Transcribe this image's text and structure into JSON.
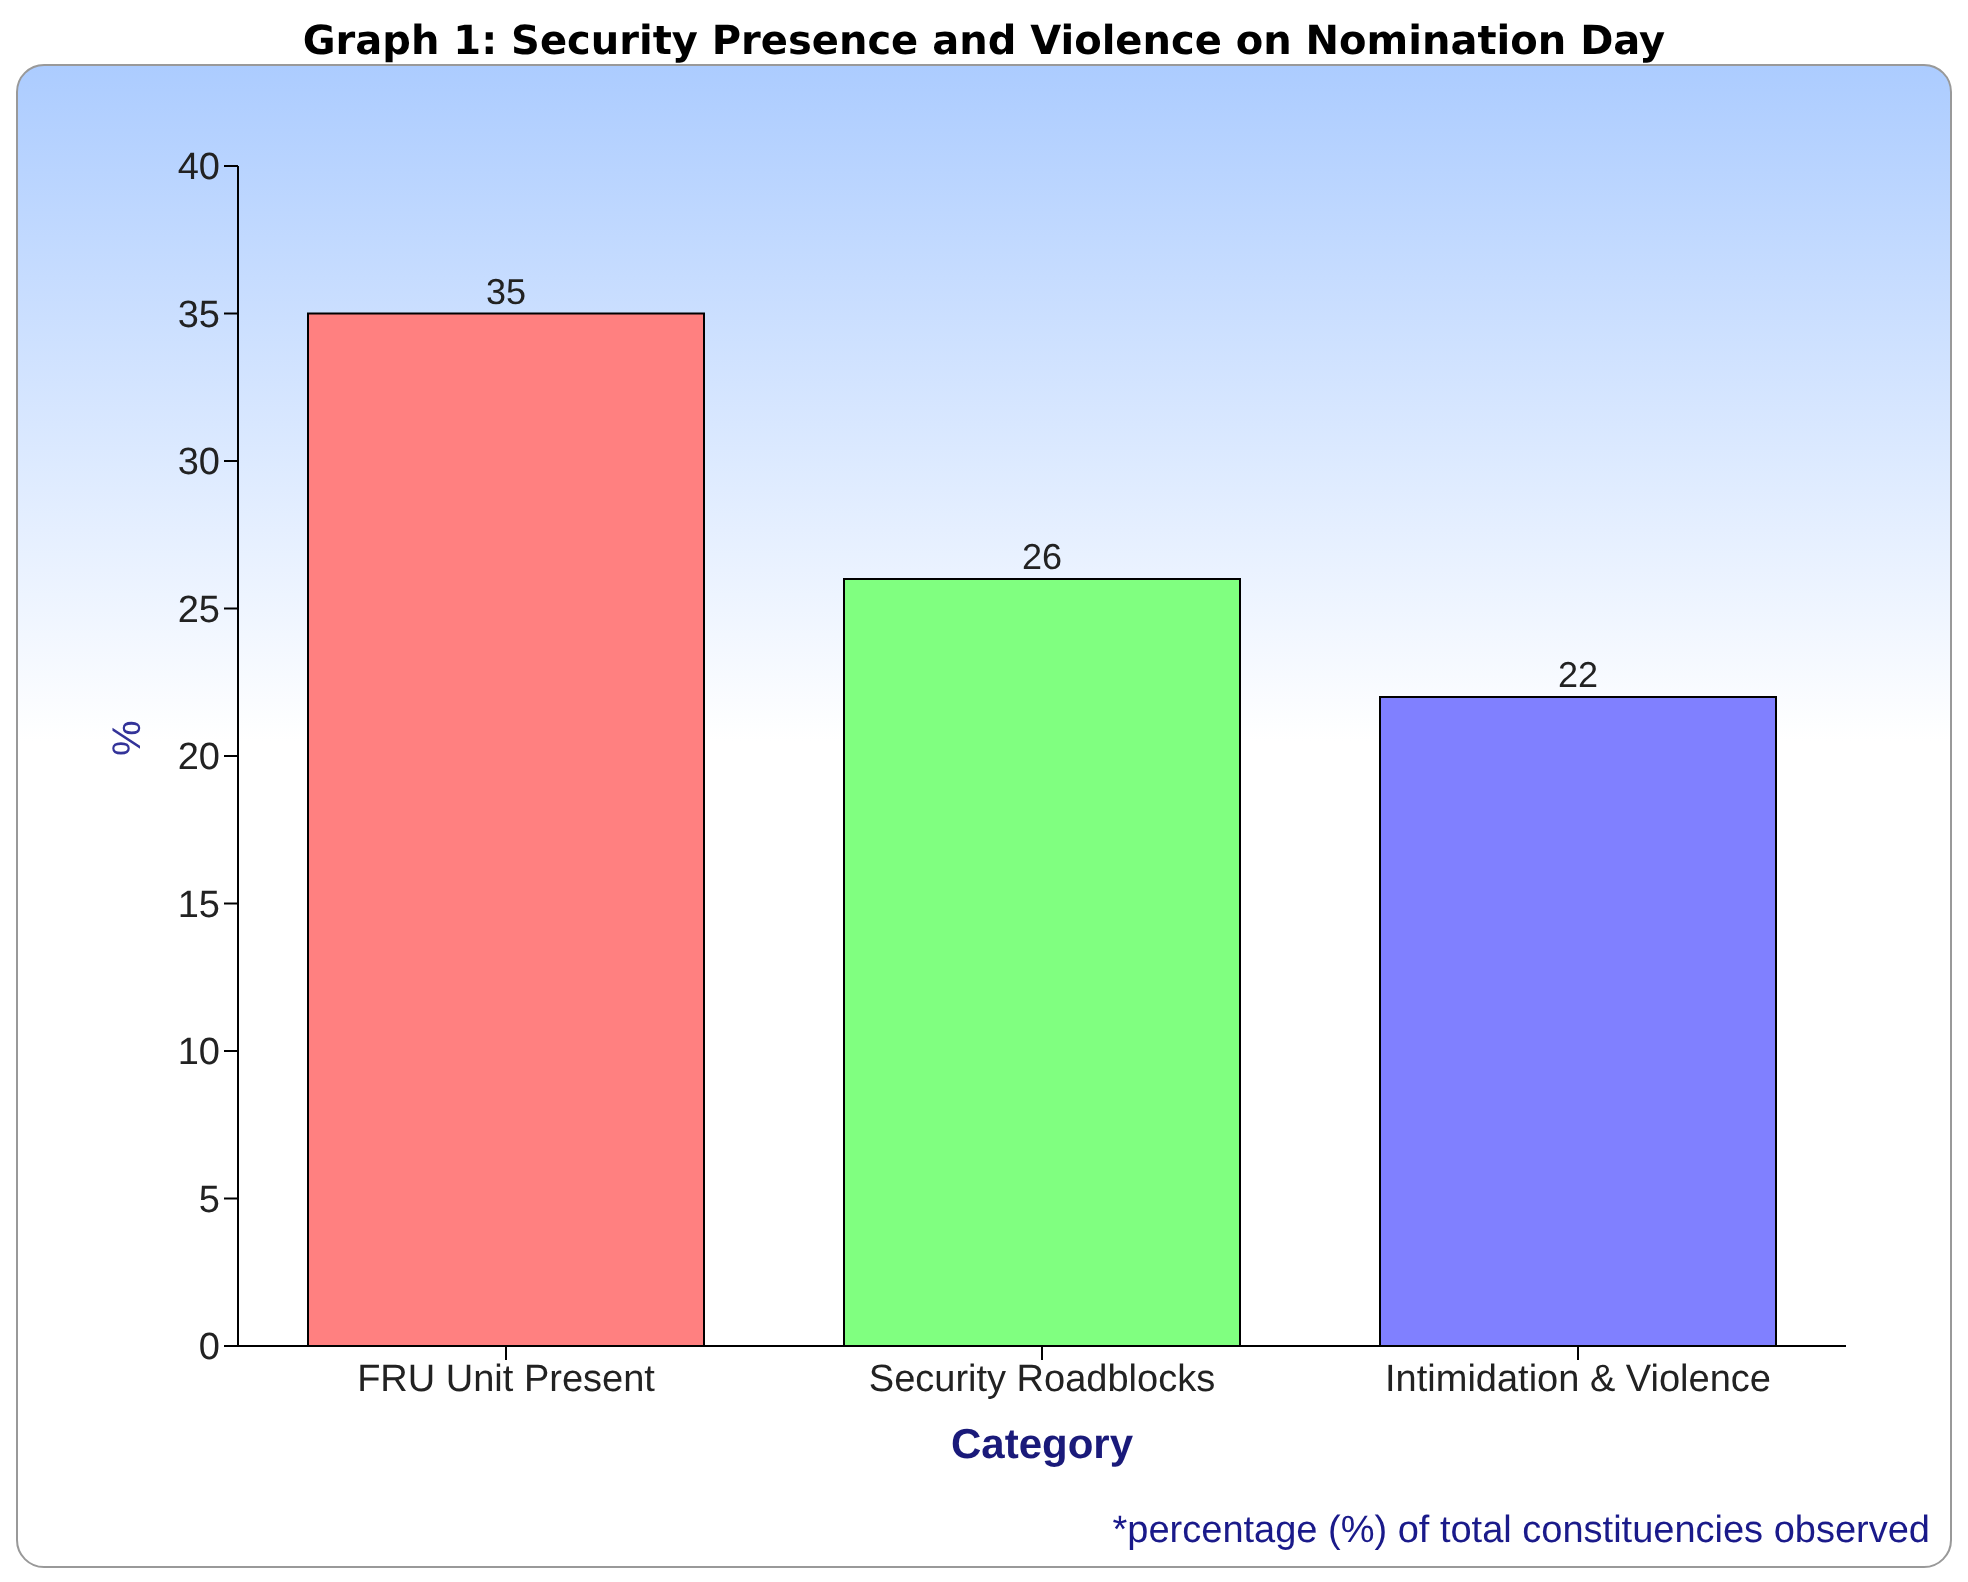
{
  "chart_data": {
    "type": "bar",
    "title": "Graph 1: Security Presence and Violence on Nomination Day",
    "categories": [
      "FRU Unit Present",
      "Security Roadblocks",
      "Intimidation & Violence"
    ],
    "values": [
      35,
      26,
      22
    ],
    "colors": [
      "#ff8080",
      "#80ff80",
      "#8080ff"
    ],
    "xlabel": "Category",
    "ylabel": "%",
    "ylim": [
      0,
      40
    ],
    "yticks": [
      0,
      5,
      10,
      15,
      20,
      25,
      30,
      35,
      40
    ],
    "data_labels": true,
    "annotations": [
      "*percentage (%) of total constituencies observed"
    ]
  }
}
